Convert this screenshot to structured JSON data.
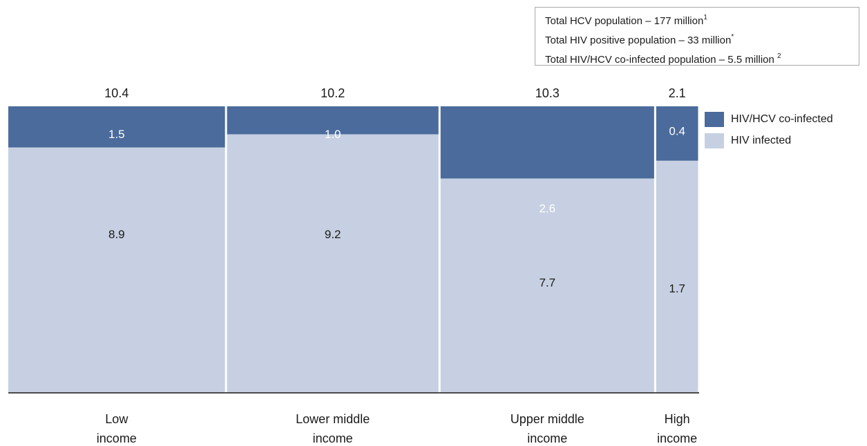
{
  "info_box": {
    "lines": [
      {
        "text": "Total HCV population – 177 million",
        "note": "1"
      },
      {
        "text": "Total HIV positive population – 33 million",
        "note": "*"
      },
      {
        "text": "Total HIV/HCV co-infected population – 5.5 million ",
        "note": "2"
      }
    ]
  },
  "legend": {
    "items": [
      {
        "label": "HIV/HCV co-infected",
        "color": "#4a6b9b"
      },
      {
        "label": "HIV infected",
        "color": "#c6d0e2"
      }
    ],
    "placement": "right"
  },
  "chart_data": {
    "type": "bar",
    "variant": "mekko",
    "stacked": true,
    "categories": [
      "Low income",
      "Lower middle income",
      "Upper middle income",
      "High income"
    ],
    "category_label_lines": [
      [
        "Low",
        "income"
      ],
      [
        "Lower middle",
        "income"
      ],
      [
        "Upper middle",
        "income"
      ],
      [
        "High",
        "income"
      ]
    ],
    "widths": [
      10.4,
      10.2,
      10.3,
      2.1
    ],
    "width_labels": [
      "10.4",
      "10.2",
      "10.3",
      "2.1"
    ],
    "series": [
      {
        "name": "HIV/HCV co-infected",
        "values": [
          1.5,
          1.0,
          2.6,
          0.4
        ],
        "labels": [
          "1.5",
          "1.0",
          "2.6",
          "0.4"
        ],
        "color": "#4a6b9b",
        "label_color": "#ffffff"
      },
      {
        "name": "HIV infected",
        "values": [
          8.9,
          9.2,
          7.7,
          1.7
        ],
        "labels": [
          "8.9",
          "9.2",
          "7.7",
          "1.7"
        ],
        "color": "#c6d0e2",
        "label_color": "#1a1a1a"
      }
    ],
    "segment_label_position": [
      [
        0.1,
        0.45
      ],
      [
        0.1,
        0.45
      ],
      [
        0.36,
        0.62
      ],
      [
        0.09,
        0.64
      ]
    ],
    "stack_order": "co-infected on top",
    "grid": false,
    "ylim": [
      0,
      100
    ]
  }
}
